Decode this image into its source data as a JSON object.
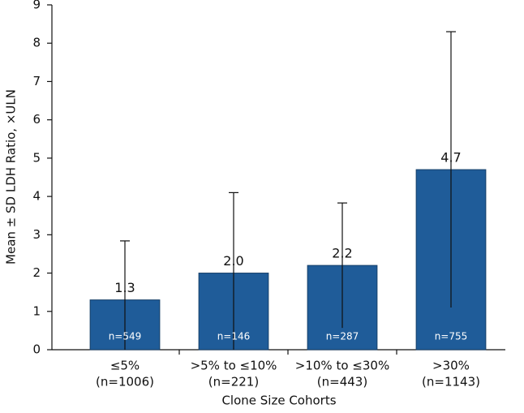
{
  "chart_data": {
    "type": "bar",
    "y_label": "Mean ± SD LDH Ratio, ×ULN",
    "x_label": "Clone Size Cohorts",
    "categories": [
      [
        "≤5%",
        "(n=1006)"
      ],
      [
        ">5% to ≤10%",
        "(n=221)"
      ],
      [
        ">10% to ≤30%",
        "(n=443)"
      ],
      [
        ">30%",
        "(n=1143)"
      ]
    ],
    "values": [
      1.3,
      2.0,
      2.2,
      4.7
    ],
    "value_labels": [
      "1.3",
      "2.0",
      "2.2",
      "4.7"
    ],
    "errors": [
      1.54,
      2.1,
      1.63,
      3.6
    ],
    "bar_labels": [
      "n=549",
      "n=146",
      "n=287",
      "n=755"
    ],
    "color": "#1f5c99",
    "ylim": [
      0,
      9
    ],
    "yticks": [
      0,
      1,
      2,
      3,
      4,
      5,
      6,
      7,
      8,
      9
    ]
  }
}
